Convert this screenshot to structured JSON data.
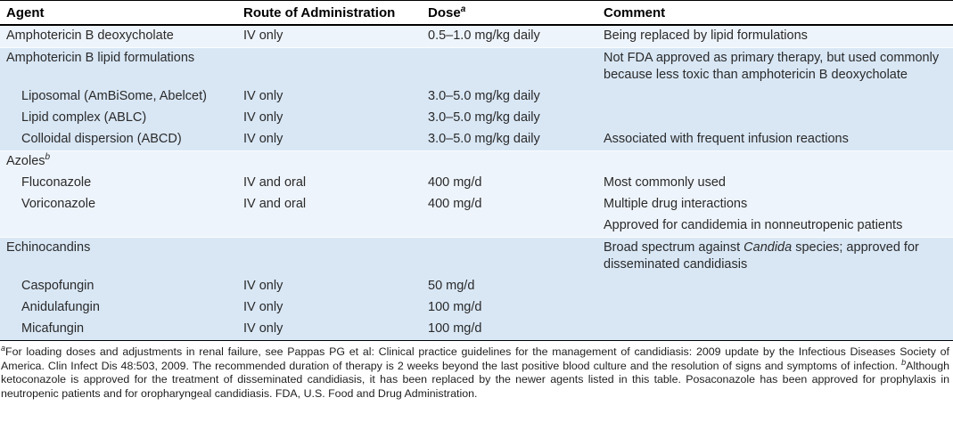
{
  "table": {
    "columns": [
      {
        "label": "Agent",
        "sup": ""
      },
      {
        "label": "Route of Administration",
        "sup": ""
      },
      {
        "label": "Dose",
        "sup": "a"
      },
      {
        "label": "Comment",
        "sup": ""
      }
    ],
    "rows": [
      {
        "agent": "Amphotericin B deoxycholate",
        "agent_sup": "",
        "indent": false,
        "route": "IV only",
        "dose": "0.5–1.0 mg/kg daily",
        "comment": [
          {
            "t": "Being replaced by lipid formulations"
          }
        ],
        "shade": "light",
        "group_start": true
      },
      {
        "agent": "Amphotericin B lipid formulations",
        "agent_sup": "",
        "indent": false,
        "route": "",
        "dose": "",
        "comment": [
          {
            "t": "Not FDA approved as primary therapy, but used commonly because less toxic than amphotericin B deoxycholate"
          }
        ],
        "shade": "blue",
        "group_start": true
      },
      {
        "agent": "Liposomal (AmBiSome, Abelcet)",
        "agent_sup": "",
        "indent": true,
        "route": "IV only",
        "dose": "3.0–5.0 mg/kg daily",
        "comment": [],
        "shade": "blue",
        "group_start": false
      },
      {
        "agent": "Lipid complex (ABLC)",
        "agent_sup": "",
        "indent": true,
        "route": "IV only",
        "dose": "3.0–5.0 mg/kg daily",
        "comment": [],
        "shade": "blue",
        "group_start": false
      },
      {
        "agent": "Colloidal dispersion (ABCD)",
        "agent_sup": "",
        "indent": true,
        "route": "IV only",
        "dose": "3.0–5.0 mg/kg daily",
        "comment": [
          {
            "t": "Associated with frequent infusion reactions"
          }
        ],
        "shade": "blue",
        "group_start": false
      },
      {
        "agent": "Azoles",
        "agent_sup": "b",
        "indent": false,
        "route": "",
        "dose": "",
        "comment": [],
        "shade": "light",
        "group_start": true
      },
      {
        "agent": "Fluconazole",
        "agent_sup": "",
        "indent": true,
        "route": "IV and oral",
        "dose": "400 mg/d",
        "comment": [
          {
            "t": "Most commonly used"
          }
        ],
        "shade": "light",
        "group_start": false
      },
      {
        "agent": "Voriconazole",
        "agent_sup": "",
        "indent": true,
        "route": "IV and oral",
        "dose": "400 mg/d",
        "comment": [
          {
            "t": "Multiple drug interactions"
          }
        ],
        "shade": "light",
        "group_start": false
      },
      {
        "agent": "",
        "agent_sup": "",
        "indent": false,
        "route": "",
        "dose": "",
        "comment": [
          {
            "t": "Approved for candidemia in nonneutropenic patients"
          }
        ],
        "shade": "light",
        "group_start": false
      },
      {
        "agent": "Echinocandins",
        "agent_sup": "",
        "indent": false,
        "route": "",
        "dose": "",
        "comment": [
          {
            "t": "Broad spectrum against "
          },
          {
            "t": "Candida",
            "i": true
          },
          {
            "t": " species; approved for disseminated candidiasis"
          }
        ],
        "shade": "blue",
        "group_start": true
      },
      {
        "agent": "Caspofungin",
        "agent_sup": "",
        "indent": true,
        "route": "IV only",
        "dose": "50 mg/d",
        "comment": [],
        "shade": "blue",
        "group_start": false
      },
      {
        "agent": "Anidulafungin",
        "agent_sup": "",
        "indent": true,
        "route": "IV only",
        "dose": "100 mg/d",
        "comment": [],
        "shade": "blue",
        "group_start": false
      },
      {
        "agent": "Micafungin",
        "agent_sup": "",
        "indent": true,
        "route": "IV only",
        "dose": "100 mg/d",
        "comment": [],
        "shade": "blue",
        "group_start": false
      }
    ]
  },
  "footnotes": [
    {
      "sup": "a",
      "t": "For loading doses and adjustments in renal failure, see Pappas PG et al: Clinical practice guidelines for the management of candidiasis: 2009 update by the Infectious Diseases Society of America. Clin Infect Dis 48:503, 2009. The recommended duration of therapy is 2 weeks beyond the last positive blood culture and the resolution of signs and symptoms of infection.  "
    },
    {
      "sup": "b",
      "t": "Although ketoconazole is approved for the treatment of disseminated candidiasis, it has been replaced by the newer agents listed in this table. Posaconazole has been approved for prophylaxis in neutropenic patients and for oropharyngeal candidiasis. FDA, U.S. Food and Drug Administration."
    }
  ],
  "colors": {
    "row_light": "#eef4fb",
    "row_blue": "#d9e7f5",
    "rule": "#000000"
  }
}
